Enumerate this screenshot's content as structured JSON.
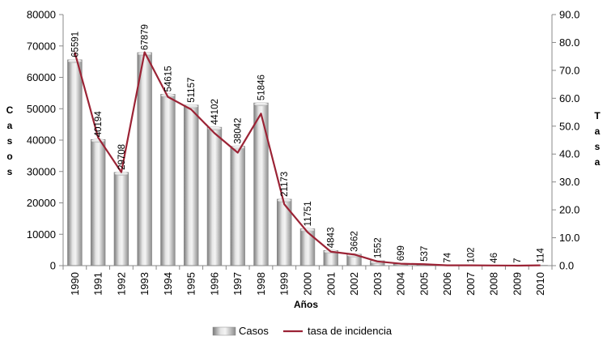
{
  "chart_data": {
    "type": "bar",
    "categories": [
      "1990",
      "1991",
      "1992",
      "1993",
      "1994",
      "1995",
      "1996",
      "1997",
      "1998",
      "1999",
      "2000",
      "2001",
      "2002",
      "2003",
      "2004",
      "2005",
      "2006",
      "2007",
      "2008",
      "2009",
      "2010"
    ],
    "series": [
      {
        "name": "Casos",
        "type": "bar",
        "axis": "left",
        "values": [
          65591,
          40194,
          29708,
          67879,
          54615,
          51157,
          44102,
          38042,
          51846,
          21173,
          11751,
          4843,
          3662,
          1552,
          699,
          537,
          74,
          102,
          46,
          7,
          114
        ],
        "labels": [
          "65591",
          "40194",
          "29708",
          "67879",
          "54615",
          "51157",
          "44102",
          "38042",
          "51846",
          "21173",
          "11751",
          "4843",
          "3662",
          "1552",
          "699",
          "537",
          "74",
          "102",
          "46",
          "7",
          "114"
        ]
      },
      {
        "name": "tasa de incidencia",
        "type": "line",
        "axis": "right",
        "color": "#9b2335",
        "values": [
          76.5,
          46.0,
          33.5,
          76.5,
          60.5,
          56.0,
          47.5,
          40.5,
          54.5,
          22.0,
          12.0,
          5.0,
          4.0,
          1.5,
          0.7,
          0.5,
          0.1,
          0.1,
          0.05,
          0.01,
          0.1
        ]
      }
    ],
    "xlabel": "Años",
    "ylabel": "Casos",
    "ylabel_right": "Tasa",
    "ylim": [
      0,
      80000
    ],
    "ylim_right": [
      0,
      90
    ],
    "yticks": [
      "0",
      "10000",
      "20000",
      "30000",
      "40000",
      "50000",
      "60000",
      "70000",
      "80000"
    ],
    "yticks_right": [
      "0.0",
      "10.0",
      "20.0",
      "30.0",
      "40.0",
      "50.0",
      "60.0",
      "70.0",
      "80.0",
      "90.0"
    ],
    "legend_position": "bottom",
    "grid": false
  }
}
